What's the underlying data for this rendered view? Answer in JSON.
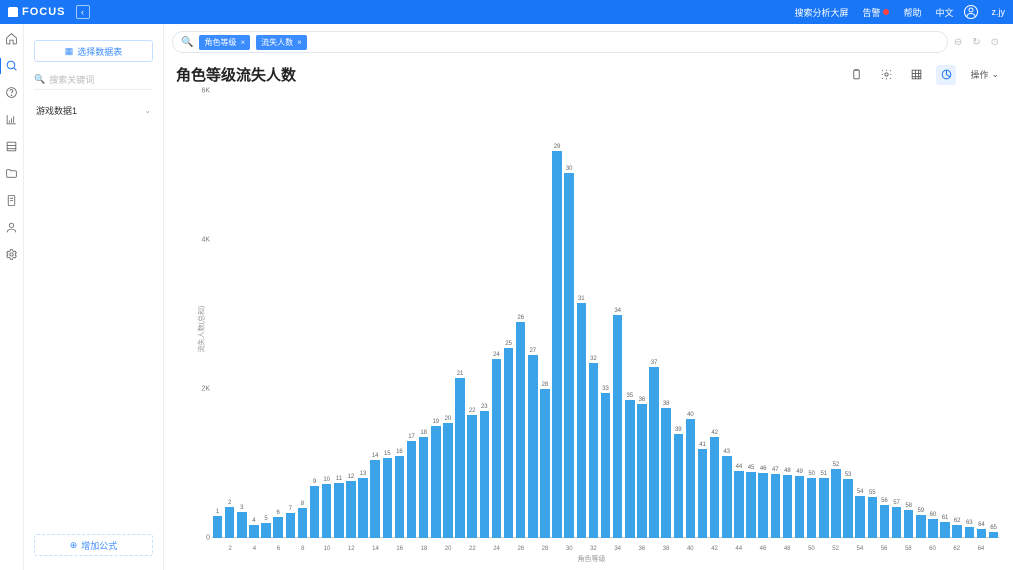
{
  "topbar": {
    "brand": "FOCUS",
    "nav1": "搜索分析大屏",
    "nav2": "告警",
    "nav3": "帮助",
    "nav4": "中文",
    "user": "z.jy"
  },
  "sidebar": {
    "select_btn": "选择数据表",
    "search_placeholder": "搜索关键词",
    "item1": "游戏数据1",
    "add_formula": "增加公式"
  },
  "query": {
    "tag1": "角色等级",
    "tag2": "流失人数"
  },
  "title": "角色等级流失人数",
  "ops_label": "操作",
  "chart": {
    "type": "bar",
    "bar_color": "#3ba3e8",
    "background_color": "#ffffff",
    "y_label": "流失人数(总和)",
    "x_label": "角色等级",
    "y_max": 6000,
    "y_ticks": [
      {
        "v": 0,
        "label": "0"
      },
      {
        "v": 2000,
        "label": "2K"
      },
      {
        "v": 4000,
        "label": "4K"
      },
      {
        "v": 6000,
        "label": "6K"
      }
    ],
    "categories": [
      1,
      2,
      3,
      4,
      5,
      6,
      7,
      8,
      9,
      10,
      11,
      12,
      13,
      14,
      15,
      16,
      17,
      18,
      19,
      20,
      21,
      22,
      23,
      24,
      25,
      26,
      27,
      28,
      29,
      30,
      31,
      32,
      33,
      34,
      35,
      36,
      37,
      38,
      39,
      40,
      41,
      42,
      43,
      44,
      45,
      46,
      47,
      48,
      49,
      50,
      51,
      52,
      53,
      54,
      55,
      56,
      57,
      58,
      59,
      60,
      61,
      62,
      63,
      64,
      65
    ],
    "bar_labels": [
      "1",
      "2",
      "3",
      "4",
      "5",
      "6",
      "7",
      "8",
      "9",
      "10",
      "11",
      "12",
      "13",
      "14",
      "15",
      "16",
      "17",
      "18",
      "19",
      "20",
      "21",
      "22",
      "23",
      "24",
      "25",
      "26",
      "27",
      "28",
      "29",
      "30",
      "31",
      "32",
      "33",
      "34",
      "35",
      "36",
      "37",
      "38",
      "39",
      "40",
      "41",
      "42",
      "43",
      "44",
      "45",
      "46",
      "47",
      "48",
      "49",
      "50",
      "51",
      "52",
      "53",
      "54",
      "55",
      "56",
      "57",
      "58",
      "59",
      "60",
      "61",
      "62",
      "63",
      "64",
      "65"
    ],
    "values": [
      300,
      420,
      350,
      180,
      200,
      280,
      330,
      400,
      700,
      720,
      740,
      770,
      800,
      1050,
      1080,
      1100,
      1300,
      1350,
      1500,
      1550,
      2150,
      1650,
      1700,
      2400,
      2550,
      2900,
      2450,
      2000,
      5200,
      4900,
      3150,
      2350,
      1950,
      3000,
      1850,
      1800,
      2300,
      1750,
      1400,
      1600,
      1200,
      1350,
      1100,
      900,
      880,
      870,
      860,
      850,
      830,
      810,
      800,
      920,
      790,
      560,
      550,
      440,
      420,
      380,
      310,
      260,
      210,
      180,
      150,
      120,
      80
    ]
  }
}
